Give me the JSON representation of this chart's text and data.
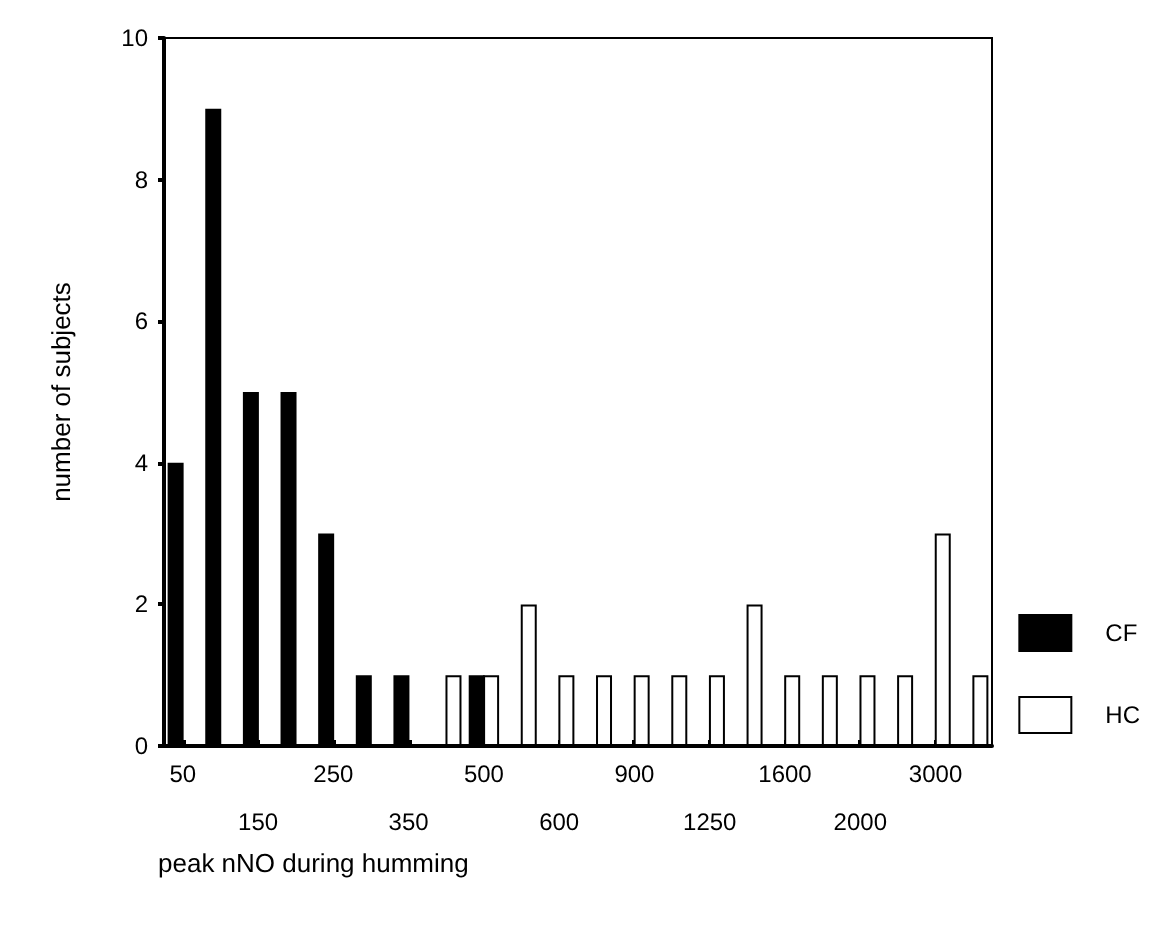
{
  "chart_data": {
    "type": "bar",
    "xlabel": "peak nNO during humming",
    "ylabel": "number of subjects",
    "categories": [
      "50",
      null,
      "150",
      null,
      "250",
      null,
      "350",
      null,
      "500",
      null,
      "600",
      null,
      "900",
      null,
      "1250",
      null,
      "1600",
      null,
      "2000",
      null,
      "3000",
      null
    ],
    "series": [
      {
        "name": "CF",
        "color": "#000000",
        "values": [
          4,
          9,
          5,
          5,
          3,
          1,
          1,
          0,
          1,
          0,
          0,
          0,
          0,
          0,
          0,
          0,
          0,
          0,
          0,
          0,
          0,
          0
        ]
      },
      {
        "name": "HC",
        "color": "#ffffff",
        "values": [
          0,
          0,
          0,
          0,
          0,
          0,
          0,
          1,
          1,
          2,
          1,
          1,
          1,
          1,
          1,
          2,
          1,
          1,
          1,
          1,
          3,
          1
        ]
      }
    ],
    "ylim": [
      0,
      10
    ],
    "yticks": [
      0,
      2,
      4,
      6,
      8,
      10
    ],
    "grid": false,
    "legend": "bottom right"
  }
}
